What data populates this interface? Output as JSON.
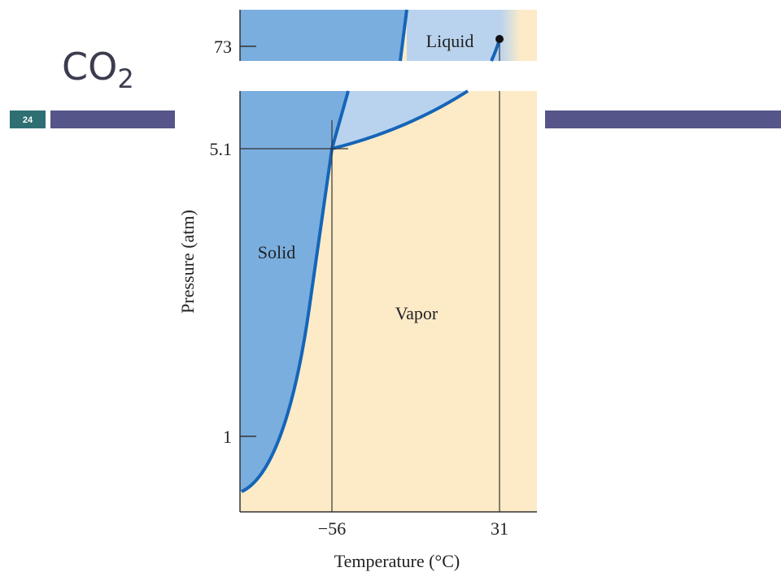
{
  "slide": {
    "title": {
      "main": "CO",
      "subscript": "2"
    },
    "number": "24"
  },
  "diagram": {
    "y_axis_label": "Pressure (atm)",
    "x_axis_label": "Temperature (°C)",
    "y_ticks": [
      "73",
      "5.1",
      "1"
    ],
    "x_ticks": [
      "−56",
      "31"
    ],
    "regions": {
      "solid": "Solid",
      "liquid": "Liquid",
      "vapor": "Vapor"
    }
  }
}
